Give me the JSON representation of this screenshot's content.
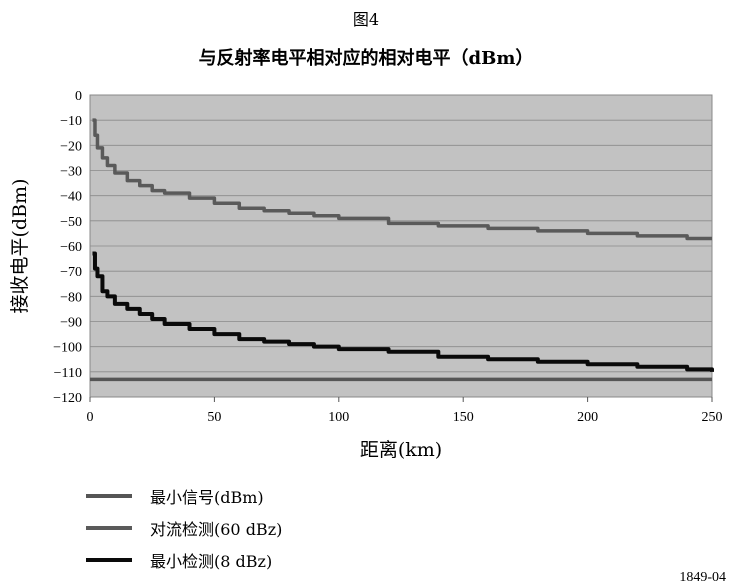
{
  "figure_number": "图4",
  "figure_code": "1849-04",
  "chart_data": {
    "type": "line",
    "title": "与反射率电平相对应的相对电平（dBm）",
    "xlabel": "距离(km)",
    "ylabel": "接收电平(dBm)",
    "xlim": [
      0,
      250
    ],
    "ylim": [
      -120,
      0
    ],
    "xticks": [
      0,
      50,
      100,
      150,
      200,
      250
    ],
    "yticks": [
      0,
      -10,
      -20,
      -30,
      -40,
      -50,
      -60,
      -70,
      -80,
      -90,
      -100,
      -110,
      -120
    ],
    "ytick_labels": [
      "0",
      "−10",
      "−20",
      "−30",
      "−40",
      "−50",
      "−60",
      "−70",
      "−80",
      "−90",
      "−100",
      "−110",
      "−120"
    ],
    "grid": true,
    "legend_position": "bottom-left",
    "series": [
      {
        "name": "最小信号(dBm)",
        "color": "#555555",
        "x": [
          0,
          250
        ],
        "y": [
          -113,
          -113
        ]
      },
      {
        "name": "对流检测(60 dBz)",
        "color": "#5a5a5a",
        "x": [
          1,
          2,
          3,
          5,
          7,
          10,
          15,
          20,
          25,
          30,
          40,
          50,
          60,
          70,
          80,
          90,
          100,
          120,
          140,
          160,
          180,
          200,
          220,
          240,
          250
        ],
        "y": [
          -10,
          -16,
          -21,
          -25,
          -28,
          -31,
          -34,
          -36,
          -38,
          -39,
          -41,
          -43,
          -45,
          -46,
          -47,
          -48,
          -49,
          -51,
          -52,
          -53,
          -54,
          -55,
          -56,
          -57,
          -57
        ]
      },
      {
        "name": "最小检测(8 dBz)",
        "color": "#0a0a0a",
        "x": [
          1,
          2,
          3,
          5,
          7,
          10,
          15,
          20,
          25,
          30,
          40,
          50,
          60,
          70,
          80,
          90,
          100,
          120,
          140,
          160,
          180,
          200,
          220,
          240,
          250
        ],
        "y": [
          -63,
          -69,
          -72,
          -78,
          -80,
          -83,
          -85,
          -87,
          -89,
          -91,
          -93,
          -95,
          -97,
          -98,
          -99,
          -100,
          -101,
          -102,
          -104,
          -105,
          -106,
          -107,
          -108,
          -109,
          -110
        ]
      }
    ]
  }
}
